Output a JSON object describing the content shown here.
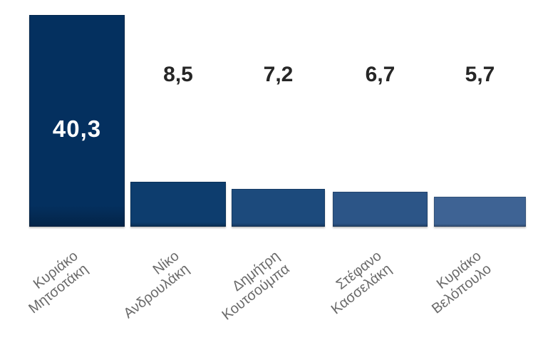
{
  "chart_data": {
    "type": "bar",
    "title": "",
    "xlabel": "",
    "ylabel": "",
    "ylim": [
      0,
      42
    ],
    "grid": false,
    "legend": false,
    "background": "#ffffff",
    "value_label_color": "#262626",
    "inside_value_label_color": "#ffffff",
    "category_label_color": "#6a6a6a",
    "categories": [
      "Κυριάκο Μητσοτάκη",
      "Νίκο Ανδρουλάκη",
      "Δημήτρη Κουτσούμπα",
      "Στέφανο Κασσελάκη",
      "Κυριάκο Βελόπουλο"
    ],
    "values": [
      40.3,
      8.5,
      7.2,
      6.7,
      5.7
    ],
    "bars": [
      {
        "category_lines": [
          "Κυριάκο",
          "Μητσοτάκη"
        ],
        "value": 40.3,
        "value_label": "40,3",
        "value_label_position": "inside",
        "color": "#04305f"
      },
      {
        "category_lines": [
          "Νίκο",
          "Ανδρουλάκη"
        ],
        "value": 8.5,
        "value_label": "8,5",
        "value_label_position": "above",
        "color": "#0d3d6e"
      },
      {
        "category_lines": [
          "Δημήτρη",
          "Κουτσούμπα"
        ],
        "value": 7.2,
        "value_label": "7,2",
        "value_label_position": "above",
        "color": "#1c4a7c"
      },
      {
        "category_lines": [
          "Στέφανο",
          "Κασσελάκη"
        ],
        "value": 6.7,
        "value_label": "6,7",
        "value_label_position": "above",
        "color": "#2c5587"
      },
      {
        "category_lines": [
          "Κυριάκο",
          "Βελόπουλο"
        ],
        "value": 5.7,
        "value_label": "5,7",
        "value_label_position": "above",
        "color": "#3e6394"
      }
    ]
  }
}
